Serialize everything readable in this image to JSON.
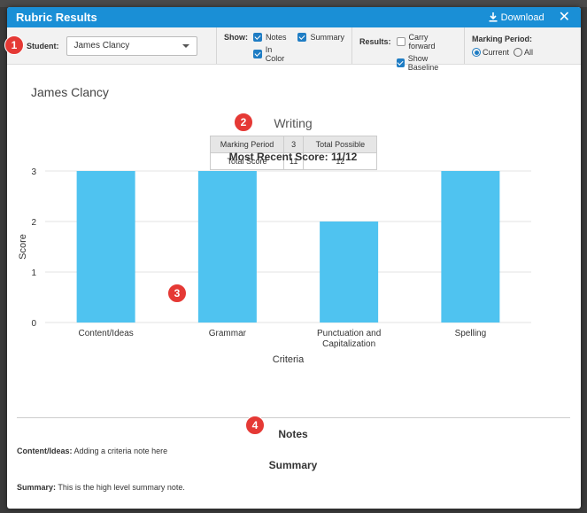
{
  "modal": {
    "title": "Rubric Results",
    "download_label": "Download",
    "close_icon": "close-icon"
  },
  "toolbar": {
    "student_label": "Student:",
    "student_value": "James Clancy",
    "show_label": "Show:",
    "show_options": [
      {
        "label": "Notes",
        "checked": true
      },
      {
        "label": "Summary",
        "checked": true
      },
      {
        "label": "In Color",
        "checked": true
      }
    ],
    "results_label": "Results:",
    "results_options": [
      {
        "label": "Carry forward",
        "checked": false
      },
      {
        "label": "Show Baseline",
        "checked": true
      }
    ],
    "marking_period_label": "Marking Period:",
    "marking_period_options": [
      {
        "label": "Current",
        "selected": true
      },
      {
        "label": "All",
        "selected": false
      }
    ]
  },
  "report": {
    "student_name": "James Clancy",
    "section_title": "Writing",
    "table": {
      "headers": [
        "Marking Period",
        "3",
        "Total Possible"
      ],
      "row": [
        "Total Score",
        "11",
        "12"
      ]
    },
    "notes_title": "Notes",
    "criteria_note_label": "Content/Ideas:",
    "criteria_note_text": "Adding a criteria note here",
    "summary_title": "Summary",
    "summary_label": "Summary:",
    "summary_text": "This is the high level summary note."
  },
  "chart_data": {
    "type": "bar",
    "title": "Most Recent Score: 11/12",
    "xlabel": "Criteria",
    "ylabel": "Score",
    "categories": [
      "Content/Ideas",
      "Grammar",
      "Punctuation and Capitalization",
      "Spelling"
    ],
    "category_lines": [
      [
        "Content/Ideas"
      ],
      [
        "Grammar"
      ],
      [
        "Punctuation and",
        "Capitalization"
      ],
      [
        "Spelling"
      ]
    ],
    "values": [
      3,
      3,
      2,
      3
    ],
    "ylim": [
      0,
      3
    ],
    "yticks": [
      0,
      1,
      2,
      3
    ],
    "grid": true,
    "bar_color": "#4fc3f0"
  },
  "callouts": [
    "1",
    "2",
    "3",
    "4"
  ],
  "colors": {
    "titlebar": "#1a8fd6",
    "checkbox": "#1f7dc4",
    "callout": "#e53935"
  }
}
